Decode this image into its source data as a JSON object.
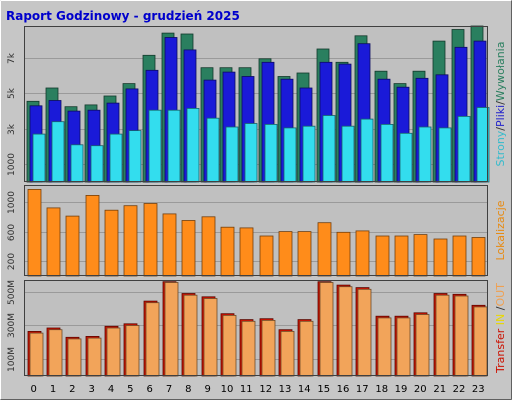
{
  "chart_data": {
    "type": "bar",
    "title": "Raport Godzinowy -  grudzień 2025",
    "categories": [
      "0",
      "1",
      "2",
      "3",
      "4",
      "5",
      "6",
      "7",
      "8",
      "9",
      "10",
      "11",
      "12",
      "13",
      "14",
      "15",
      "16",
      "17",
      "18",
      "19",
      "20",
      "21",
      "22",
      "23"
    ],
    "panels": [
      {
        "id": "visits",
        "yticks": [
          1000,
          3000,
          5000,
          7000
        ],
        "ytick_labels": [
          "1000",
          "3k",
          "5k",
          "7k"
        ],
        "ylim": [
          0,
          8800
        ],
        "ylabel_parts": [
          {
            "text": "Strony",
            "color": "#33bbcc"
          },
          {
            "text": "/",
            "color": "#333333"
          },
          {
            "text": "Pliki",
            "color": "#2222cc"
          },
          {
            "text": "/",
            "color": "#333333"
          },
          {
            "text": "Wywołania",
            "color": "#2a7f5f"
          }
        ],
        "series": [
          {
            "name": "Wywołania",
            "color": "#2a7f5f",
            "values": [
              4550,
              5300,
              4250,
              4350,
              4850,
              5550,
              7150,
              8400,
              8350,
              6450,
              6450,
              6450,
              6950,
              5950,
              6150,
              7500,
              6750,
              8250,
              6250,
              5550,
              6250,
              7950,
              8600,
              8800
            ]
          },
          {
            "name": "Pliki",
            "color": "#1a1ad8",
            "values": [
              4300,
              4600,
              4000,
              4050,
              4450,
              5250,
              6300,
              8150,
              7450,
              5750,
              6200,
              5950,
              6750,
              5800,
              5300,
              6750,
              6650,
              7800,
              5800,
              5350,
              5850,
              6050,
              7600,
              7950
            ]
          },
          {
            "name": "Strony",
            "color": "#33ddee",
            "values": [
              2700,
              3400,
              2100,
              2050,
              2700,
              2900,
              4050,
              4050,
              4150,
              3600,
              3100,
              3300,
              3250,
              3050,
              3150,
              3750,
              3150,
              3550,
              3250,
              2750,
              3100,
              3050,
              3700,
              4200
            ]
          }
        ]
      },
      {
        "id": "locations",
        "yticks": [
          200,
          600,
          1000
        ],
        "ytick_labels": [
          "200",
          "600",
          "1000"
        ],
        "ylim": [
          0,
          1230
        ],
        "ylabel_parts": [
          {
            "text": "Lokalizacje",
            "color": "#e88a10"
          }
        ],
        "series": [
          {
            "name": "Lokalizacje",
            "color": "#ff8c1a",
            "values": [
              1170,
              920,
              810,
              1090,
              890,
              950,
              980,
              840,
              750,
              800,
              660,
              650,
              540,
              600,
              600,
              720,
              590,
              610,
              540,
              540,
              560,
              500,
              540,
              520
            ]
          }
        ]
      },
      {
        "id": "transfer",
        "yticks": [
          100,
          300,
          500
        ],
        "ytick_labels": [
          "100M",
          "300M",
          "500M"
        ],
        "ylim": [
          0,
          570
        ],
        "ylabel_parts": [
          {
            "text": "Transfer",
            "color": "#cc1100"
          },
          {
            "text": " IN ",
            "color": "#e8d800"
          },
          {
            "text": "/",
            "color": "#333333"
          },
          {
            "text": "OUT",
            "color": "#f0a050"
          }
        ],
        "series": [
          {
            "name": "IN",
            "color": "#cc1100",
            "values": [
              265,
              285,
              230,
              235,
              295,
              310,
              445,
              560,
              490,
              470,
              370,
              335,
              340,
              275,
              335,
              560,
              540,
              525,
              355,
              355,
              375,
              490,
              485,
              420
            ]
          },
          {
            "name": "OUT",
            "color": "#f2a45a",
            "values": [
              255,
              275,
              220,
              225,
              285,
              300,
              435,
              555,
              480,
              460,
              360,
              325,
              330,
              265,
              325,
              555,
              530,
              515,
              345,
              345,
              365,
              480,
              475,
              410
            ]
          }
        ]
      }
    ],
    "grid": true,
    "legend": "right-vertical"
  }
}
